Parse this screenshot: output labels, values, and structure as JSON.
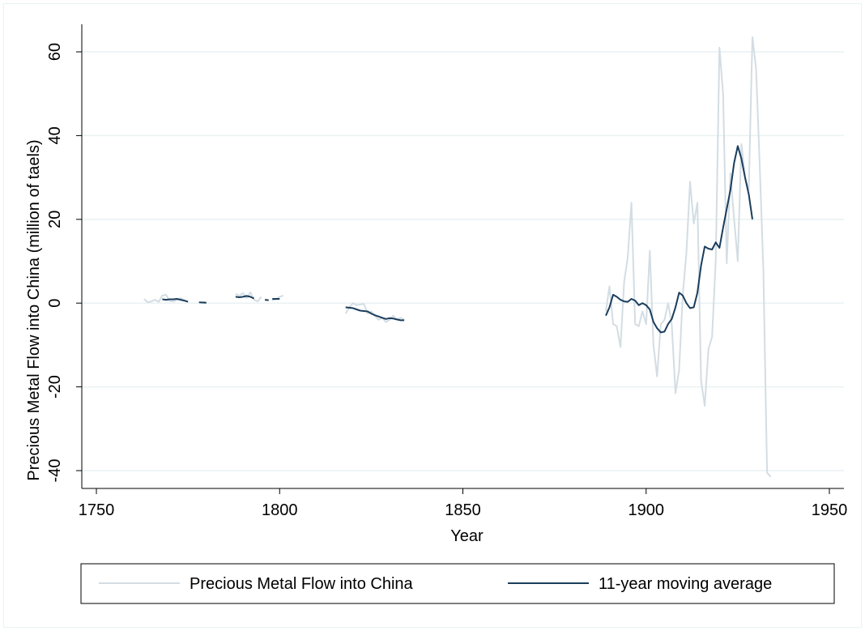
{
  "chart_data": {
    "type": "line",
    "xlabel": "Year",
    "ylabel": "Precious Metal Flow into China (million of taels)",
    "xlim": [
      1750,
      1955
    ],
    "ylim": [
      -45,
      67
    ],
    "xticks": [
      1750,
      1800,
      1850,
      1900,
      1950
    ],
    "yticks": [
      -40,
      -20,
      0,
      20,
      40,
      60
    ],
    "xtick_labels": [
      "1750",
      "1800",
      "1850",
      "1900",
      "1950"
    ],
    "ytick_labels": [
      "-40",
      "-20",
      "0",
      "20",
      "40",
      "60"
    ],
    "grid": "horizontal",
    "legend_position": "bottom",
    "series": [
      {
        "name": "Precious Metal Flow into China",
        "color": "#d3dde3",
        "segments": [
          [
            [
              1763,
              1.0
            ],
            [
              1764,
              0.2
            ],
            [
              1765,
              0.4
            ],
            [
              1766,
              0.8
            ],
            [
              1767,
              0.3
            ],
            [
              1768,
              1.8
            ],
            [
              1769,
              2.0
            ],
            [
              1770,
              0.5
            ],
            [
              1771,
              0.4
            ],
            [
              1772,
              0.8
            ],
            [
              1773,
              1.2
            ],
            [
              1774,
              0.6
            ],
            [
              1775,
              0.3
            ]
          ],
          [
            [
              1779,
              0.3
            ],
            [
              1780,
              0.1
            ]
          ],
          [
            [
              1788,
              2.2
            ],
            [
              1789,
              1.8
            ],
            [
              1790,
              2.4
            ],
            [
              1791,
              1.2
            ],
            [
              1792,
              2.6
            ],
            [
              1793,
              0.8
            ],
            [
              1794,
              0.4
            ],
            [
              1795,
              1.5
            ]
          ],
          [
            [
              1798,
              0.6
            ],
            [
              1799,
              0.9
            ],
            [
              1800,
              1.5
            ],
            [
              1801,
              1.8
            ]
          ],
          [
            [
              1818,
              -2.5
            ],
            [
              1819,
              -1.0
            ],
            [
              1820,
              0.0
            ],
            [
              1821,
              -0.5
            ],
            [
              1822,
              -0.3
            ],
            [
              1823,
              -0.2
            ],
            [
              1824,
              -2.5
            ],
            [
              1825,
              -2.0
            ],
            [
              1826,
              -3.0
            ],
            [
              1827,
              -4.0
            ],
            [
              1828,
              -3.5
            ],
            [
              1829,
              -4.5
            ],
            [
              1830,
              -4.0
            ],
            [
              1831,
              -3.0
            ],
            [
              1832,
              -4.0
            ],
            [
              1833,
              -3.5
            ],
            [
              1834,
              -4.0
            ]
          ],
          [
            [
              1889,
              -2.0
            ],
            [
              1890,
              4.0
            ],
            [
              1891,
              -5.0
            ],
            [
              1892,
              -5.5
            ],
            [
              1893,
              -10.5
            ],
            [
              1894,
              5.0
            ],
            [
              1895,
              11.0
            ],
            [
              1896,
              24.0
            ],
            [
              1897,
              -5.0
            ],
            [
              1898,
              -5.5
            ],
            [
              1899,
              -2.0
            ],
            [
              1900,
              -5.0
            ],
            [
              1901,
              12.5
            ],
            [
              1902,
              -10.0
            ],
            [
              1903,
              -17.5
            ],
            [
              1904,
              -5.0
            ],
            [
              1905,
              -4.0
            ],
            [
              1906,
              0.0
            ],
            [
              1907,
              -5.0
            ],
            [
              1908,
              -21.5
            ],
            [
              1909,
              -16.0
            ],
            [
              1910,
              2.0
            ],
            [
              1911,
              12.0
            ],
            [
              1912,
              29.0
            ],
            [
              1913,
              19.0
            ],
            [
              1914,
              24.0
            ],
            [
              1915,
              -18.5
            ],
            [
              1916,
              -24.5
            ],
            [
              1917,
              -11.0
            ],
            [
              1918,
              -8.0
            ],
            [
              1919,
              10.0
            ],
            [
              1920,
              61.0
            ],
            [
              1921,
              50.0
            ],
            [
              1922,
              9.5
            ],
            [
              1923,
              31.0
            ],
            [
              1924,
              20.0
            ],
            [
              1925,
              10.0
            ],
            [
              1926,
              38.0
            ],
            [
              1927,
              30.0
            ],
            [
              1928,
              27.0
            ],
            [
              1929,
              63.5
            ],
            [
              1930,
              56.0
            ],
            [
              1931,
              33.0
            ],
            [
              1932,
              8.0
            ],
            [
              1933,
              -40.5
            ],
            [
              1934,
              -41.5
            ]
          ]
        ]
      },
      {
        "name": "11-year moving average",
        "color": "#1a3d5c",
        "segments": [
          [
            [
              1768,
              0.9
            ],
            [
              1769,
              0.8
            ],
            [
              1770,
              0.9
            ],
            [
              1771,
              0.9
            ],
            [
              1772,
              1.0
            ],
            [
              1773,
              0.8
            ],
            [
              1774,
              0.6
            ],
            [
              1775,
              0.3
            ]
          ],
          [
            [
              1778,
              0.2
            ],
            [
              1780,
              0.1
            ]
          ],
          [
            [
              1788,
              1.5
            ],
            [
              1789,
              1.4
            ],
            [
              1790,
              1.5
            ],
            [
              1791,
              1.7
            ],
            [
              1792,
              1.5
            ],
            [
              1793,
              1.1
            ]
          ],
          [
            [
              1796,
              0.8
            ],
            [
              1797,
              0.7
            ]
          ],
          [
            [
              1798,
              1.0
            ],
            [
              1799,
              1.0
            ],
            [
              1800,
              1.0
            ]
          ],
          [
            [
              1818,
              -1.0
            ],
            [
              1819,
              -1.1
            ],
            [
              1820,
              -1.2
            ],
            [
              1821,
              -1.5
            ],
            [
              1822,
              -1.8
            ],
            [
              1823,
              -1.9
            ],
            [
              1824,
              -2.0
            ],
            [
              1825,
              -2.5
            ],
            [
              1826,
              -2.9
            ],
            [
              1827,
              -3.2
            ],
            [
              1828,
              -3.5
            ],
            [
              1829,
              -3.8
            ],
            [
              1830,
              -3.6
            ],
            [
              1831,
              -3.7
            ],
            [
              1832,
              -3.9
            ],
            [
              1833,
              -4.1
            ],
            [
              1834,
              -4.1
            ]
          ],
          [
            [
              1889,
              -3.0
            ],
            [
              1890,
              -1.0
            ],
            [
              1891,
              2.0
            ],
            [
              1892,
              1.5
            ],
            [
              1893,
              0.8
            ],
            [
              1894,
              0.4
            ],
            [
              1895,
              0.3
            ],
            [
              1896,
              1.0
            ],
            [
              1897,
              0.6
            ],
            [
              1898,
              -0.5
            ],
            [
              1899,
              0.0
            ],
            [
              1900,
              -0.5
            ],
            [
              1901,
              -1.5
            ],
            [
              1902,
              -4.5
            ],
            [
              1903,
              -6.0
            ],
            [
              1904,
              -7.0
            ],
            [
              1905,
              -6.8
            ],
            [
              1906,
              -5.0
            ],
            [
              1907,
              -3.8
            ],
            [
              1908,
              -1.0
            ],
            [
              1909,
              2.5
            ],
            [
              1910,
              1.8
            ],
            [
              1911,
              0.0
            ],
            [
              1912,
              -1.2
            ],
            [
              1913,
              -1.0
            ],
            [
              1914,
              2.5
            ],
            [
              1915,
              9.0
            ],
            [
              1916,
              13.5
            ],
            [
              1917,
              13.0
            ],
            [
              1918,
              12.8
            ],
            [
              1919,
              14.5
            ],
            [
              1920,
              13.2
            ],
            [
              1921,
              18.0
            ],
            [
              1922,
              22.5
            ],
            [
              1923,
              27.0
            ],
            [
              1924,
              33.5
            ],
            [
              1925,
              37.5
            ],
            [
              1926,
              34.5
            ],
            [
              1927,
              30.0
            ],
            [
              1928,
              26.0
            ],
            [
              1929,
              20.0
            ]
          ]
        ]
      }
    ]
  }
}
